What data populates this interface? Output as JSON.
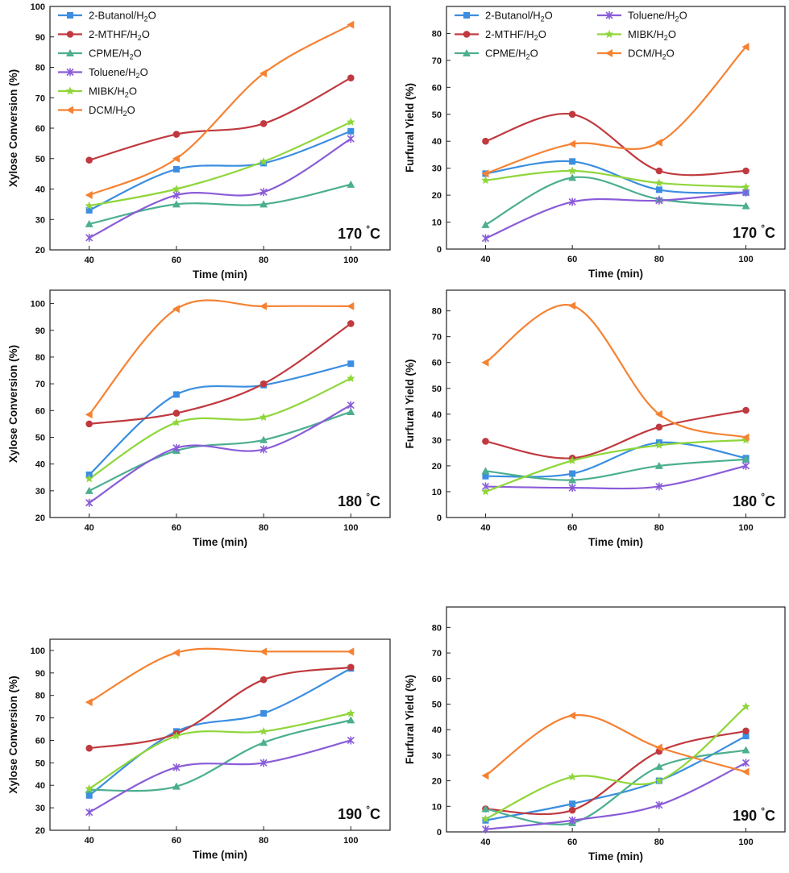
{
  "series_styles": [
    {
      "name": "2-Butanol/H2O",
      "color": "#3b8ee0",
      "marker": "square"
    },
    {
      "name": "2-MTHF/H2O",
      "color": "#c0393f",
      "marker": "circle"
    },
    {
      "name": "CPME/H2O",
      "color": "#4caf8f",
      "marker": "triangle"
    },
    {
      "name": "Toluene/H2O",
      "color": "#8a5cd8",
      "marker": "cross"
    },
    {
      "name": "MIBK/H2O",
      "color": "#8fd63a",
      "marker": "star"
    },
    {
      "name": "DCM/H2O",
      "color": "#f58232",
      "marker": "triangle-left"
    }
  ],
  "chart_data": [
    {
      "type": "line",
      "title": "",
      "annotation": "170 °C",
      "xlabel": "Time (min)",
      "ylabel": "Xylose Conversion (%)",
      "x": [
        40,
        60,
        80,
        100
      ],
      "xticks": [
        "40",
        "60",
        "80",
        "100"
      ],
      "ylim": [
        20,
        100
      ],
      "yticks": [
        "20",
        "30",
        "40",
        "50",
        "60",
        "70",
        "80",
        "90",
        "100"
      ],
      "legend": "two-column-top",
      "legend_columns": 1,
      "series": [
        {
          "name": "2-Butanol/H2O",
          "values": [
            33,
            46.5,
            48.5,
            59
          ]
        },
        {
          "name": "2-MTHF/H2O",
          "values": [
            49.5,
            58,
            61.5,
            76.5
          ]
        },
        {
          "name": "CPME/H2O",
          "values": [
            28.5,
            35,
            35,
            41.5
          ]
        },
        {
          "name": "Toluene/H2O",
          "values": [
            24,
            38,
            39,
            56.5
          ]
        },
        {
          "name": "MIBK/H2O",
          "values": [
            34.5,
            40,
            49,
            62
          ]
        },
        {
          "name": "DCM/H2O",
          "values": [
            38,
            50,
            78,
            94
          ]
        }
      ]
    },
    {
      "type": "line",
      "title": "",
      "annotation": "170 °C",
      "xlabel": "Time (min)",
      "ylabel": "Furfural Yield (%)",
      "x": [
        40,
        60,
        80,
        100
      ],
      "xticks": [
        "40",
        "60",
        "80",
        "100"
      ],
      "ylim": [
        0,
        90
      ],
      "yticks": [
        "0",
        "10",
        "20",
        "30",
        "40",
        "50",
        "60",
        "70",
        "80"
      ],
      "legend": "top",
      "legend_columns": 2,
      "series": [
        {
          "name": "2-Butanol/H2O",
          "values": [
            28,
            32.5,
            22,
            21
          ]
        },
        {
          "name": "2-MTHF/H2O",
          "values": [
            40,
            50,
            29,
            29
          ]
        },
        {
          "name": "CPME/H2O",
          "values": [
            9,
            26.5,
            18.5,
            16
          ]
        },
        {
          "name": "Toluene/H2O",
          "values": [
            4,
            17.5,
            18,
            21
          ]
        },
        {
          "name": "MIBK/H2O",
          "values": [
            25.5,
            29,
            24.5,
            23
          ]
        },
        {
          "name": "DCM/H2O",
          "values": [
            28,
            39,
            39.5,
            75
          ]
        }
      ]
    },
    {
      "type": "line",
      "title": "",
      "annotation": "180 °C",
      "xlabel": "Time (min)",
      "ylabel": "Xylose Conversion (%)",
      "x": [
        40,
        60,
        80,
        100
      ],
      "xticks": [
        "40",
        "60",
        "80",
        "100"
      ],
      "ylim": [
        20,
        105
      ],
      "yticks": [
        "20",
        "30",
        "40",
        "50",
        "60",
        "70",
        "80",
        "90",
        "100"
      ],
      "legend": "none",
      "series": [
        {
          "name": "2-Butanol/H2O",
          "values": [
            36,
            66,
            69.5,
            77.5
          ]
        },
        {
          "name": "2-MTHF/H2O",
          "values": [
            55,
            59,
            70,
            92.5
          ]
        },
        {
          "name": "CPME/H2O",
          "values": [
            30,
            45,
            49,
            59.5
          ]
        },
        {
          "name": "Toluene/H2O",
          "values": [
            25.5,
            46,
            45.5,
            62
          ]
        },
        {
          "name": "MIBK/H2O",
          "values": [
            34.5,
            55.5,
            57.5,
            72
          ]
        },
        {
          "name": "DCM/H2O",
          "values": [
            58.5,
            98,
            99,
            99
          ]
        }
      ]
    },
    {
      "type": "line",
      "title": "",
      "annotation": "180 °C",
      "xlabel": "Time (min)",
      "ylabel": "Furfural Yield (%)",
      "x": [
        40,
        60,
        80,
        100
      ],
      "xticks": [
        "40",
        "60",
        "80",
        "100"
      ],
      "ylim": [
        0,
        88
      ],
      "yticks": [
        "0",
        "10",
        "20",
        "30",
        "40",
        "50",
        "60",
        "70",
        "80"
      ],
      "legend": "none",
      "series": [
        {
          "name": "2-Butanol/H2O",
          "values": [
            16,
            17,
            29,
            23
          ]
        },
        {
          "name": "2-MTHF/H2O",
          "values": [
            29.5,
            23,
            35,
            41.5
          ]
        },
        {
          "name": "CPME/H2O",
          "values": [
            18,
            14.5,
            20,
            22.5
          ]
        },
        {
          "name": "Toluene/H2O",
          "values": [
            12,
            11.5,
            12,
            20
          ]
        },
        {
          "name": "MIBK/H2O",
          "values": [
            10,
            22,
            28,
            30
          ]
        },
        {
          "name": "DCM/H2O",
          "values": [
            60,
            82,
            40,
            31
          ]
        }
      ]
    },
    {
      "type": "line",
      "title": "",
      "annotation": "190 °C",
      "xlabel": "Time (min)",
      "ylabel": "Xylose Conversion (%)",
      "x": [
        40,
        60,
        80,
        100
      ],
      "xticks": [
        "40",
        "60",
        "80",
        "100"
      ],
      "ylim": [
        20,
        105
      ],
      "yticks": [
        "20",
        "30",
        "40",
        "50",
        "60",
        "70",
        "80",
        "90",
        "100"
      ],
      "legend": "none",
      "series": [
        {
          "name": "2-Butanol/H2O",
          "values": [
            35.5,
            64,
            72,
            92
          ]
        },
        {
          "name": "2-MTHF/H2O",
          "values": [
            56.5,
            63,
            87,
            92.5
          ]
        },
        {
          "name": "CPME/H2O",
          "values": [
            38,
            39.5,
            59,
            69
          ]
        },
        {
          "name": "Toluene/H2O",
          "values": [
            28,
            48,
            50,
            60
          ]
        },
        {
          "name": "MIBK/H2O",
          "values": [
            38.5,
            62,
            64,
            72
          ]
        },
        {
          "name": "DCM/H2O",
          "values": [
            77,
            99,
            99.5,
            99.5
          ]
        }
      ]
    },
    {
      "type": "line",
      "title": "",
      "annotation": "190 °C",
      "xlabel": "Time (min)",
      "ylabel": "Furfural Yield (%)",
      "x": [
        40,
        60,
        80,
        100
      ],
      "xticks": [
        "40",
        "60",
        "80",
        "100"
      ],
      "ylim": [
        0,
        88
      ],
      "yticks": [
        "0",
        "10",
        "20",
        "30",
        "40",
        "50",
        "60",
        "70",
        "80"
      ],
      "legend": "none",
      "series": [
        {
          "name": "2-Butanol/H2O",
          "values": [
            4.5,
            11,
            20,
            37.5
          ]
        },
        {
          "name": "2-MTHF/H2O",
          "values": [
            9,
            8.5,
            31.5,
            39.5
          ]
        },
        {
          "name": "CPME/H2O",
          "values": [
            9,
            3.5,
            25.5,
            32
          ]
        },
        {
          "name": "Toluene/H2O",
          "values": [
            1,
            4.5,
            10.5,
            27
          ]
        },
        {
          "name": "MIBK/H2O",
          "values": [
            5,
            21.5,
            20,
            49
          ]
        },
        {
          "name": "DCM/H2O",
          "values": [
            22,
            45.5,
            33,
            23.5
          ]
        }
      ]
    }
  ]
}
